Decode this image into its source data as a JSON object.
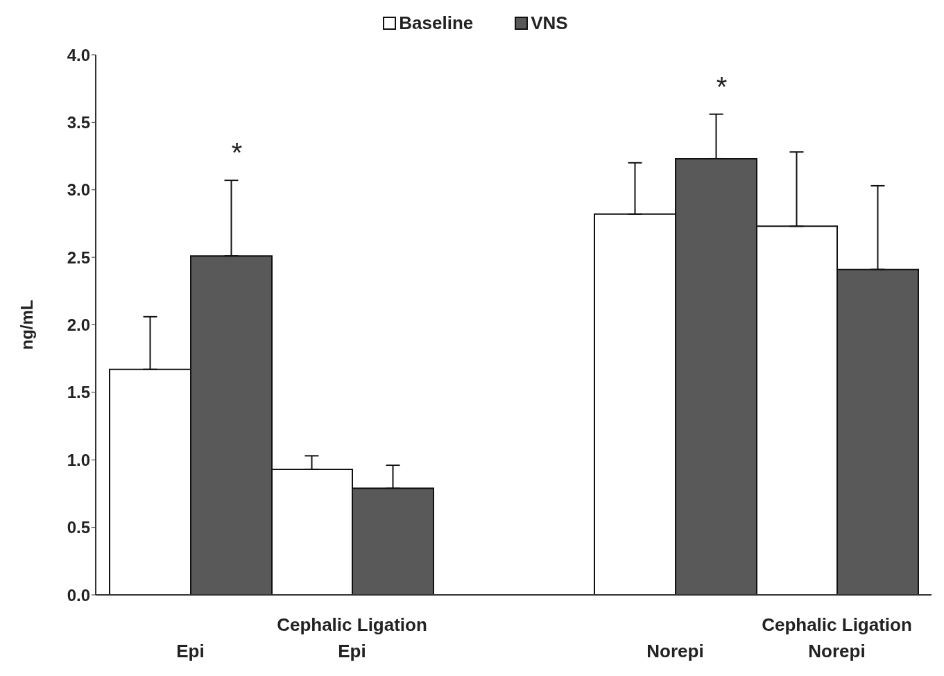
{
  "chart_data": {
    "type": "bar",
    "ylabel": "ng/mL",
    "categories": [
      "Epi",
      "Cephalic Ligation\nEpi",
      null,
      "Norepi",
      "Cephalic Ligation\nNorepi"
    ],
    "series": [
      {
        "name": "Baseline",
        "color": "#ffffff",
        "values": [
          1.67,
          0.93,
          null,
          2.82,
          2.73
        ],
        "errors": [
          [
            1.67,
            2.06
          ],
          [
            0.93,
            1.03
          ],
          null,
          [
            2.82,
            3.2
          ],
          [
            2.73,
            3.28
          ]
        ]
      },
      {
        "name": "VNS",
        "color": "#595959",
        "values": [
          2.51,
          0.79,
          null,
          3.23,
          2.41
        ],
        "errors": [
          [
            2.51,
            3.07
          ],
          [
            0.79,
            0.96
          ],
          null,
          [
            3.23,
            3.56
          ],
          [
            2.41,
            3.03
          ]
        ]
      }
    ],
    "ylim": [
      0,
      4
    ],
    "yticks": [
      {
        "value": 0,
        "label": "0.0"
      },
      {
        "value": 0.5,
        "label": "0.5"
      },
      {
        "value": 1,
        "label": "1.0"
      },
      {
        "value": 1.5,
        "label": "1.5"
      },
      {
        "value": 2,
        "label": "2.0"
      },
      {
        "value": 2.5,
        "label": "2.5"
      },
      {
        "value": 3,
        "label": "3.0"
      },
      {
        "value": 3.5,
        "label": "3.5"
      },
      {
        "value": 4,
        "label": "4.0"
      }
    ],
    "annotations": [
      "*",
      "*"
    ],
    "grid": false,
    "legend": "top"
  }
}
